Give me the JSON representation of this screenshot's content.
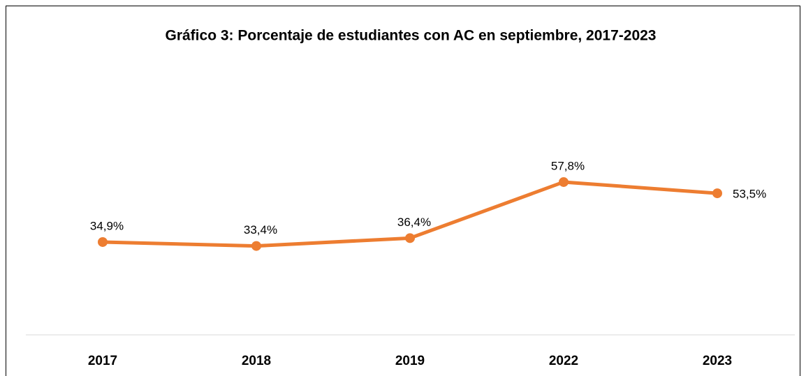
{
  "chart_data": {
    "type": "line",
    "title": "Gráfico 3: Porcentaje de estudiantes con AC en septiembre, 2017-2023",
    "categories": [
      "2017",
      "2018",
      "2019",
      "2022",
      "2023"
    ],
    "series": [
      {
        "color": "#ed7d31",
        "values": [
          34.9,
          33.4,
          36.4,
          57.8,
          53.5
        ],
        "value_labels": [
          "34,9%",
          "33,4%",
          "36,4%",
          "57,8%",
          "53,5%"
        ]
      }
    ]
  }
}
